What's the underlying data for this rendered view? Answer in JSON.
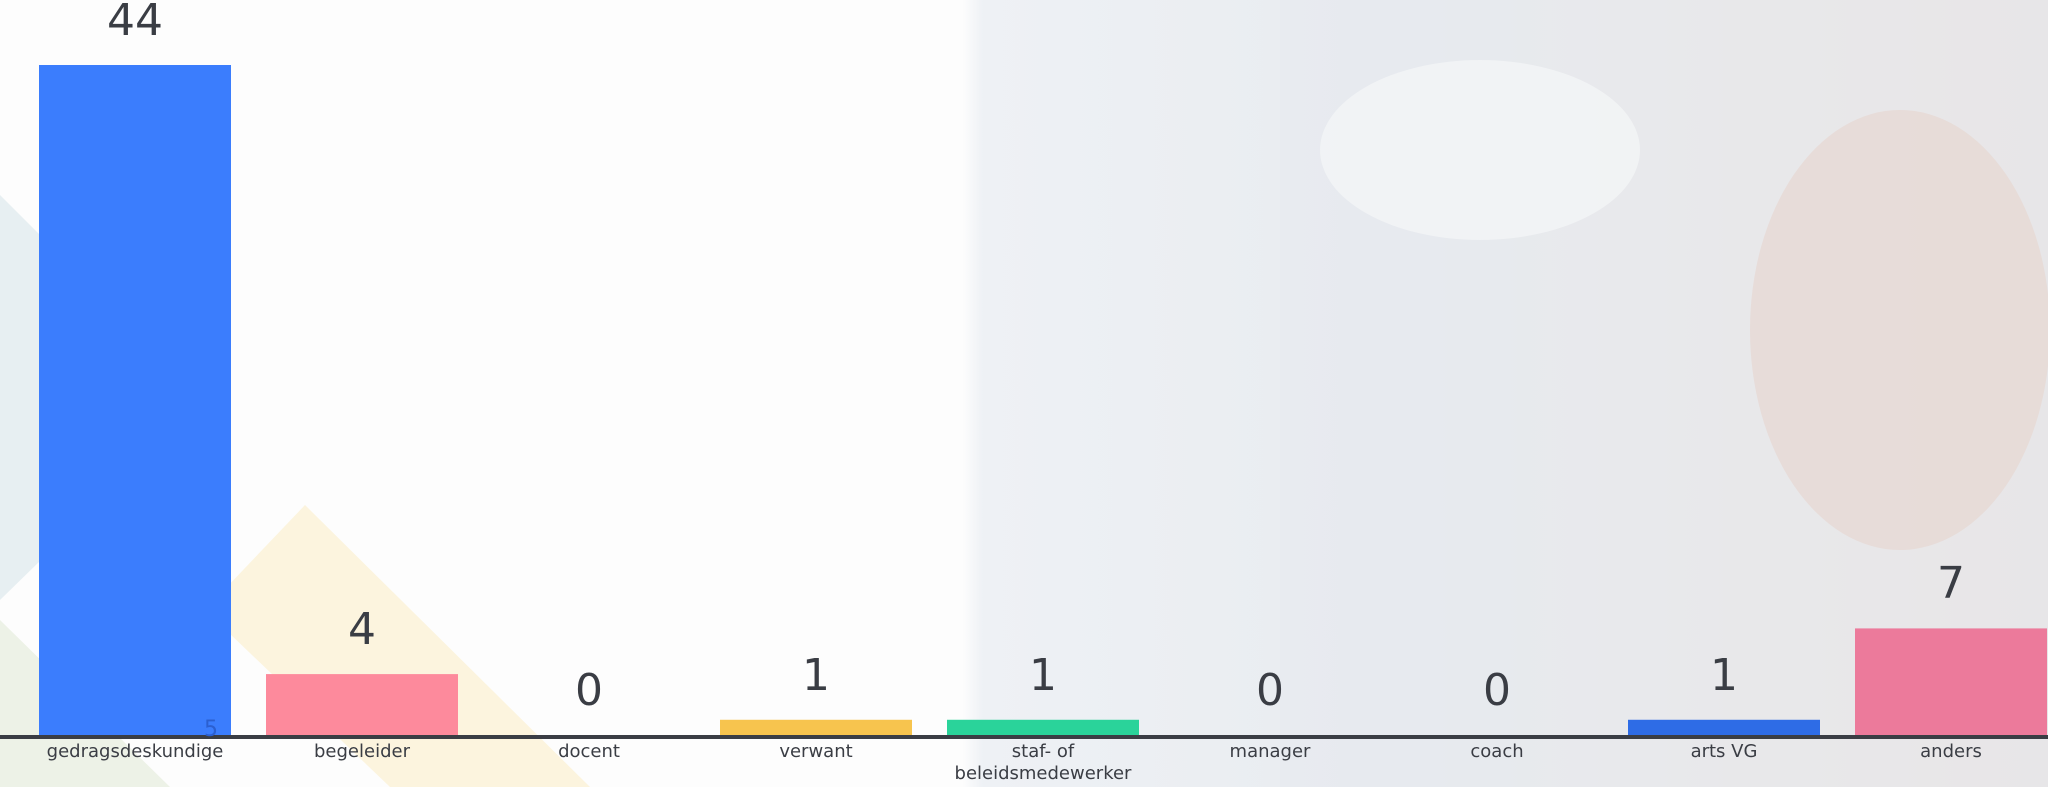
{
  "chart_data": {
    "type": "bar",
    "categories": [
      "gedragsdeskundige",
      "begeleider",
      "docent",
      "verwant",
      "staf- of beleidsmedewerker",
      "manager",
      "coach",
      "arts VG",
      "anders"
    ],
    "values": [
      44,
      4,
      0,
      1,
      1,
      0,
      0,
      1,
      7
    ],
    "colors": [
      "#3b7dfd",
      "#fd8a9c",
      "#3b7dfd",
      "#f7c44e",
      "#2ad39a",
      "#3b7dfd",
      "#3b7dfd",
      "#2e6ce6",
      "#ec7a9b"
    ],
    "extra_label": "5"
  }
}
